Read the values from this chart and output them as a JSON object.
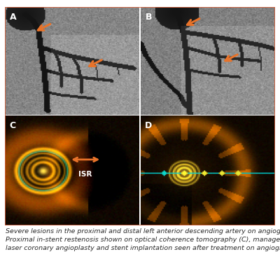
{
  "caption_line1": "Severe lesions in the proximal and distal left anterior descending artery on angiography (A).",
  "caption_line2": "Proximal in-stent restenosis shown on optical coherence tomography (C), managed by excimer",
  "caption_line3": "laser coronary angioplasty and stent implantation seen after treatment on angiography (B) and",
  "panel_labels": [
    "A",
    "B",
    "C",
    "D"
  ],
  "label_color": "#ffffff",
  "arrow_color": "#e8732a",
  "isr_label": "ISR",
  "border_color": "#d9603a",
  "background_color": "#ffffff",
  "caption_color": "#2a2a2a",
  "caption_fontsize": 6.8,
  "panel_label_fontsize": 9,
  "border_linewidth": 1.2
}
